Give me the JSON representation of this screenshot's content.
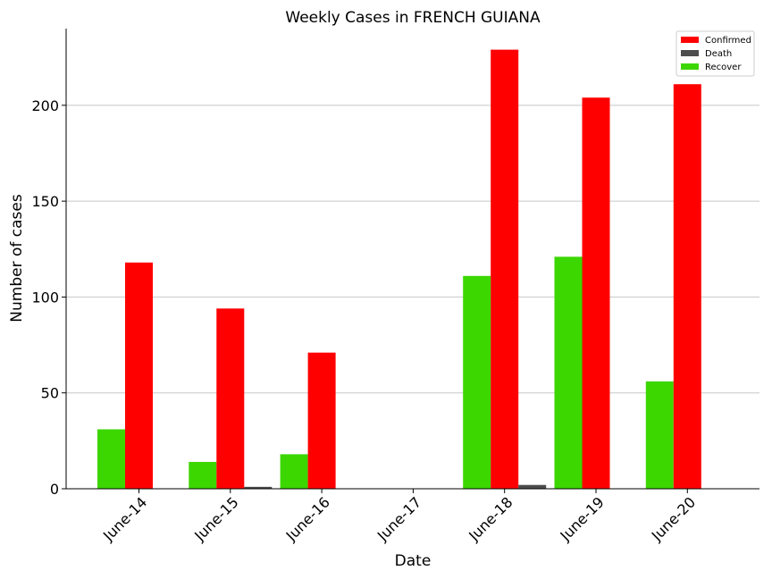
{
  "chart_data": {
    "type": "bar",
    "title": "Weekly Cases in FRENCH GUIANA",
    "xlabel": "Date",
    "ylabel": "Number of cases",
    "categories": [
      "June-14",
      "June-15",
      "June-16",
      "June-17",
      "June-18",
      "June-19",
      "June-20"
    ],
    "series": [
      {
        "name": "Recover",
        "color": "#3cd600",
        "values": [
          31,
          14,
          18,
          0,
          111,
          121,
          56
        ]
      },
      {
        "name": "Confirmed",
        "color": "#ff0000",
        "values": [
          118,
          94,
          71,
          0,
          229,
          204,
          211
        ]
      },
      {
        "name": "Death",
        "color": "#4d4d4d",
        "values": [
          0,
          1,
          0,
          0,
          2,
          0,
          0
        ]
      }
    ],
    "legend_order": [
      "Confirmed",
      "Death",
      "Recover"
    ],
    "ylim": [
      0,
      240
    ],
    "yticks": [
      0,
      50,
      100,
      150,
      200
    ],
    "grid": "y",
    "legend_position": "top-right"
  }
}
